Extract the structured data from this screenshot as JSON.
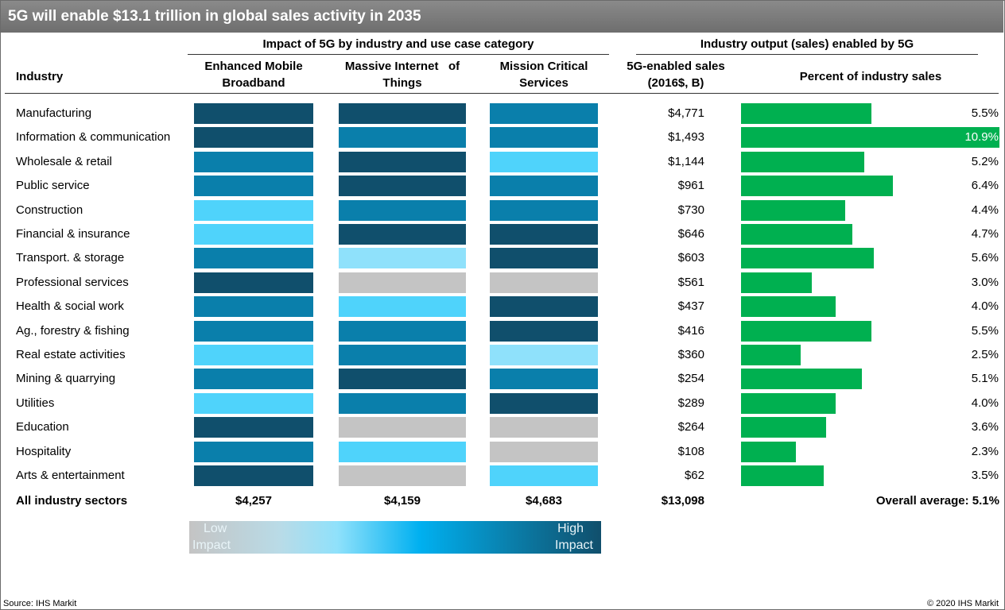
{
  "title": "5G will enable $13.1 trillion in global sales activity in 2035",
  "headers": {
    "group_impact": "Impact of 5G by industry and use case category",
    "group_output": "Industry output (sales) enabled by 5G",
    "industry": "Industry",
    "embb_line1": "Enhanced Mobile",
    "embb_line2": "Broadband",
    "miot_line1": "Massive Internet   of",
    "miot_line2": "Things",
    "mcs_line1": "Mission Critical",
    "mcs_line2": "Services",
    "sales_line1": "5G-enabled sales",
    "sales_line2": "(2016$, B)",
    "percent": "Percent of industry sales"
  },
  "impact_colors": {
    "high": "#104f6c",
    "medium_high": "#0a7fab",
    "medium": "#4fd3fb",
    "low": "#8fe1fb",
    "none": "#c4c4c4"
  },
  "bar_color": "#00b050",
  "chart_data": {
    "type": "table",
    "columns": [
      "Industry",
      "Enhanced Mobile Broadband",
      "Massive Internet of Things",
      "Mission Critical Services",
      "5G-enabled sales (2016$, B)",
      "Percent of industry sales"
    ],
    "rows": [
      {
        "industry": "Manufacturing",
        "embb": "high",
        "miot": "high",
        "mcs": "medium_high",
        "sales": "$4,771",
        "pct_label": "5.5%",
        "pct": 5.5
      },
      {
        "industry": "Information & communication",
        "embb": "high",
        "miot": "medium_high",
        "mcs": "medium_high",
        "sales": "$1,493",
        "pct_label": "10.9%",
        "pct": 10.9
      },
      {
        "industry": "Wholesale & retail",
        "embb": "medium_high",
        "miot": "high",
        "mcs": "medium",
        "sales": "$1,144",
        "pct_label": "5.2%",
        "pct": 5.2
      },
      {
        "industry": "Public service",
        "embb": "medium_high",
        "miot": "high",
        "mcs": "medium_high",
        "sales": "$961",
        "pct_label": "6.4%",
        "pct": 6.4
      },
      {
        "industry": "Construction",
        "embb": "medium",
        "miot": "medium_high",
        "mcs": "medium_high",
        "sales": "$730",
        "pct_label": "4.4%",
        "pct": 4.4
      },
      {
        "industry": "Financial & insurance",
        "embb": "medium",
        "miot": "high",
        "mcs": "high",
        "sales": "$646",
        "pct_label": "4.7%",
        "pct": 4.7
      },
      {
        "industry": "Transport. & storage",
        "embb": "medium_high",
        "miot": "low",
        "mcs": "high",
        "sales": "$603",
        "pct_label": "5.6%",
        "pct": 5.6
      },
      {
        "industry": "Professional services",
        "embb": "high",
        "miot": "none",
        "mcs": "none",
        "sales": "$561",
        "pct_label": "3.0%",
        "pct": 3.0
      },
      {
        "industry": "Health & social work",
        "embb": "medium_high",
        "miot": "medium",
        "mcs": "high",
        "sales": "$437",
        "pct_label": "4.0%",
        "pct": 4.0
      },
      {
        "industry": "Ag., forestry & fishing",
        "embb": "medium_high",
        "miot": "medium_high",
        "mcs": "high",
        "sales": "$416",
        "pct_label": "5.5%",
        "pct": 5.5
      },
      {
        "industry": "Real estate activities",
        "embb": "medium",
        "miot": "medium_high",
        "mcs": "low",
        "sales": "$360",
        "pct_label": "2.5%",
        "pct": 2.5
      },
      {
        "industry": "Mining & quarrying",
        "embb": "medium_high",
        "miot": "high",
        "mcs": "medium_high",
        "sales": "$254",
        "pct_label": "5.1%",
        "pct": 5.1
      },
      {
        "industry": "Utilities",
        "embb": "medium",
        "miot": "medium_high",
        "mcs": "high",
        "sales": "$289",
        "pct_label": "4.0%",
        "pct": 4.0
      },
      {
        "industry": "Education",
        "embb": "high",
        "miot": "none",
        "mcs": "none",
        "sales": "$264",
        "pct_label": "3.6%",
        "pct": 3.6
      },
      {
        "industry": "Hospitality",
        "embb": "medium_high",
        "miot": "medium",
        "mcs": "none",
        "sales": "$108",
        "pct_label": "2.3%",
        "pct": 2.3
      },
      {
        "industry": "Arts & entertainment",
        "embb": "high",
        "miot": "none",
        "mcs": "medium",
        "sales": "$62",
        "pct_label": "3.5%",
        "pct": 3.5
      }
    ],
    "pct_max": 10.9,
    "totals": {
      "label": "All industry sectors",
      "embb": "$4,257",
      "miot": "$4,159",
      "mcs": "$4,683",
      "sales": "$13,098",
      "average": "Overall average: 5.1%"
    }
  },
  "legend": {
    "low_line1": "Low",
    "low_line2": "Impact",
    "high_line1": "High",
    "high_line2": "Impact"
  },
  "footer": {
    "source": "Source: IHS Markit",
    "copyright": "© 2020 IHS Markit"
  }
}
